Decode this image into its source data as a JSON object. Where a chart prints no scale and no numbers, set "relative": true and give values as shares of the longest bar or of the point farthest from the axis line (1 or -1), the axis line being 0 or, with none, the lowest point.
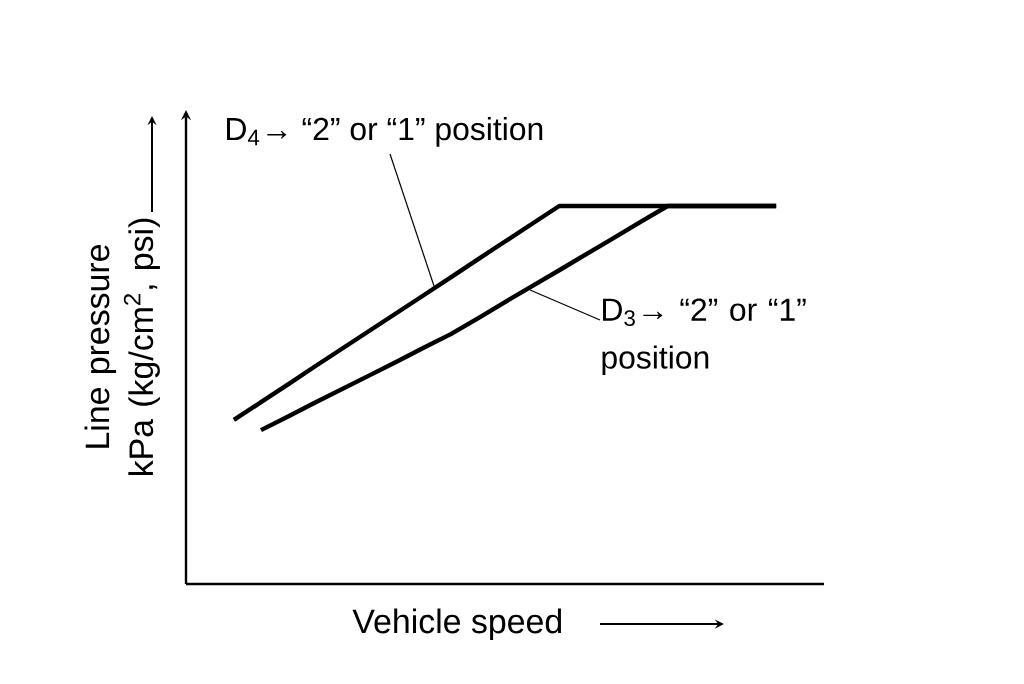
{
  "chart_data": {
    "type": "line",
    "relative": true,
    "xlabel": "Vehicle speed",
    "ylabel": "Line pressure kPa (kg/cm$^{2}$, psi)",
    "categories": [
      null,
      null,
      null,
      null,
      null,
      null,
      null,
      null,
      null,
      null,
      null,
      null,
      null,
      null,
      null,
      null,
      null,
      null,
      null,
      null,
      null
    ],
    "tick_labels": false,
    "marker": "none",
    "line_style": "solid",
    "series": [
      {
        "color": "#000000",
        "values": [
          0.434,
          0.481,
          0.528,
          0.576,
          0.623,
          0.67,
          0.717,
          0.764,
          0.811,
          0.859,
          0.906,
          0.953,
          1,
          1,
          1,
          1,
          1,
          1,
          1,
          1,
          1
        ]
      },
      {
        "color": "#000000",
        "values": [
          null,
          0.407,
          0.443,
          0.48,
          0.516,
          0.552,
          0.588,
          0.625,
          0.661,
          0.703,
          0.746,
          0.788,
          0.83,
          0.873,
          0.915,
          0.958,
          1,
          1,
          1,
          1,
          1
        ]
      }
    ],
    "annotations": [
      "D$_{4}$→ “2” or “1” position",
      "D$_{3}$→ “2” or “1” position"
    ]
  }
}
